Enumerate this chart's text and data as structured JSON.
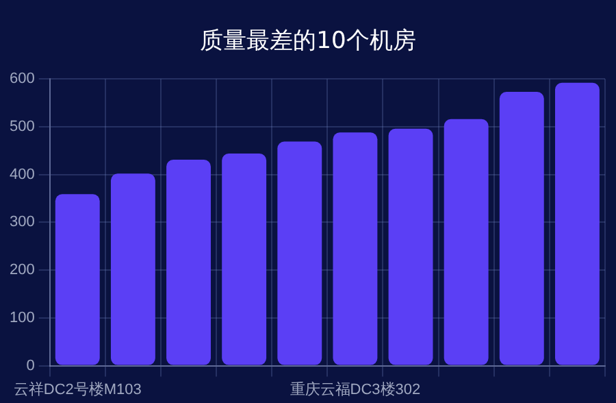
{
  "chart_data": {
    "type": "bar",
    "title": "质量最差的10个机房",
    "categories": [
      "云祥DC2号楼M103",
      null,
      null,
      null,
      null,
      "重庆云福DC3楼302",
      null,
      null,
      null,
      null
    ],
    "values": [
      359,
      402,
      431,
      444,
      469,
      488,
      496,
      516,
      573,
      592
    ],
    "color": "#5b3ff5",
    "ylim": [
      0,
      600
    ],
    "yticks": [
      0,
      100,
      200,
      300,
      400,
      500,
      600
    ],
    "grid": true,
    "legend": false
  }
}
